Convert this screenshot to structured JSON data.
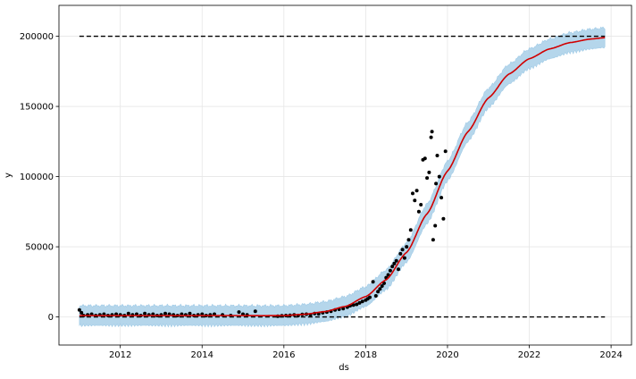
{
  "chart_data": {
    "type": "scatter",
    "xlabel": "ds",
    "ylabel": "y",
    "xlim": [
      2010.5,
      2024.5
    ],
    "ylim": [
      -20000,
      222000
    ],
    "grid": true,
    "x_ticks": [
      2012,
      2014,
      2016,
      2018,
      2020,
      2022,
      2024
    ],
    "x_tick_labels": [
      "2012",
      "2014",
      "2016",
      "2018",
      "2020",
      "2022",
      "2024"
    ],
    "y_ticks": [
      0,
      50000,
      100000,
      150000,
      200000
    ],
    "y_tick_labels": [
      "0",
      "50000",
      "100000",
      "150000",
      "200000"
    ],
    "cap": 200000,
    "floor": 0,
    "x_start": 2011.0,
    "x_end": 2023.85,
    "forecast": {
      "x": [
        2011,
        2012,
        2013,
        2014,
        2015,
        2015.5,
        2016,
        2016.5,
        2017,
        2017.5,
        2018,
        2018.5,
        2019,
        2019.5,
        2020,
        2020.5,
        2021,
        2021.5,
        2022,
        2022.5,
        2023,
        2023.5,
        2023.85
      ],
      "y": [
        1000,
        1000,
        1000,
        1000,
        1000,
        900,
        1000,
        1900,
        3800,
        7500,
        14500,
        26500,
        46000,
        73500,
        104000,
        132000,
        156000,
        173000,
        184000,
        191000,
        195500,
        198000,
        199000
      ],
      "uncertainty": 7000
    },
    "observed": {
      "x": [
        2011.0,
        2011.05,
        2011.1,
        2011.2,
        2011.3,
        2011.4,
        2011.5,
        2011.6,
        2011.7,
        2011.8,
        2011.9,
        2012.0,
        2012.1,
        2012.2,
        2012.3,
        2012.4,
        2012.5,
        2012.6,
        2012.7,
        2012.8,
        2012.9,
        2013.0,
        2013.1,
        2013.2,
        2013.3,
        2013.4,
        2013.5,
        2013.6,
        2013.7,
        2013.8,
        2013.9,
        2014.0,
        2014.1,
        2014.2,
        2014.3,
        2014.5,
        2014.7,
        2014.9,
        2015.0,
        2015.1,
        2015.3,
        2015.85,
        2015.95,
        2016.05,
        2016.15,
        2016.25,
        2016.35,
        2016.45,
        2016.55,
        2016.65,
        2016.75,
        2016.85,
        2016.95,
        2017.05,
        2017.15,
        2017.25,
        2017.35,
        2017.45,
        2017.55,
        2017.62,
        2017.7,
        2017.78,
        2017.85,
        2017.92,
        2018.0,
        2018.05,
        2018.1,
        2018.18,
        2018.25,
        2018.3,
        2018.35,
        2018.4,
        2018.45,
        2018.5,
        2018.55,
        2018.6,
        2018.65,
        2018.7,
        2018.75,
        2018.8,
        2018.85,
        2018.9,
        2018.95,
        2019.0,
        2019.05,
        2019.1,
        2019.15,
        2019.2,
        2019.25,
        2019.3,
        2019.35,
        2019.4,
        2019.45,
        2019.5,
        2019.55,
        2019.6,
        2019.62,
        2019.65,
        2019.7,
        2019.72,
        2019.75,
        2019.8,
        2019.85,
        2019.9,
        2019.95
      ],
      "y": [
        5000,
        3000,
        1000,
        1500,
        2000,
        1000,
        1500,
        2000,
        1000,
        1500,
        2000,
        1500,
        1000,
        2500,
        1500,
        2000,
        1000,
        2500,
        1500,
        2000,
        1000,
        1500,
        2500,
        2000,
        1500,
        1000,
        2000,
        1500,
        2500,
        1000,
        1500,
        2000,
        1000,
        1500,
        2000,
        1500,
        1000,
        3500,
        2000,
        1500,
        4000,
        500,
        800,
        1000,
        1200,
        1500,
        1000,
        1800,
        2000,
        1500,
        2500,
        2200,
        3000,
        3500,
        4000,
        5000,
        5500,
        6000,
        7000,
        8000,
        8500,
        9000,
        10000,
        11000,
        12000,
        13000,
        14000,
        25000,
        15000,
        18000,
        20000,
        22000,
        24000,
        28000,
        30000,
        33000,
        36000,
        38000,
        40000,
        34000,
        45000,
        48000,
        42000,
        50000,
        55000,
        62000,
        88000,
        83000,
        90000,
        75000,
        80000,
        112000,
        113000,
        99000,
        103000,
        128000,
        132000,
        55000,
        65000,
        95000,
        115000,
        100000,
        85000,
        70000,
        118000
      ]
    },
    "colors": {
      "forecast_line": "#d10000",
      "band_fill": "#a9cfe8",
      "band_edge": "#8fc2e3",
      "point": "#000000",
      "limit_line": "#000000",
      "grid": "#e6e6e6",
      "axis": "#000000"
    }
  }
}
